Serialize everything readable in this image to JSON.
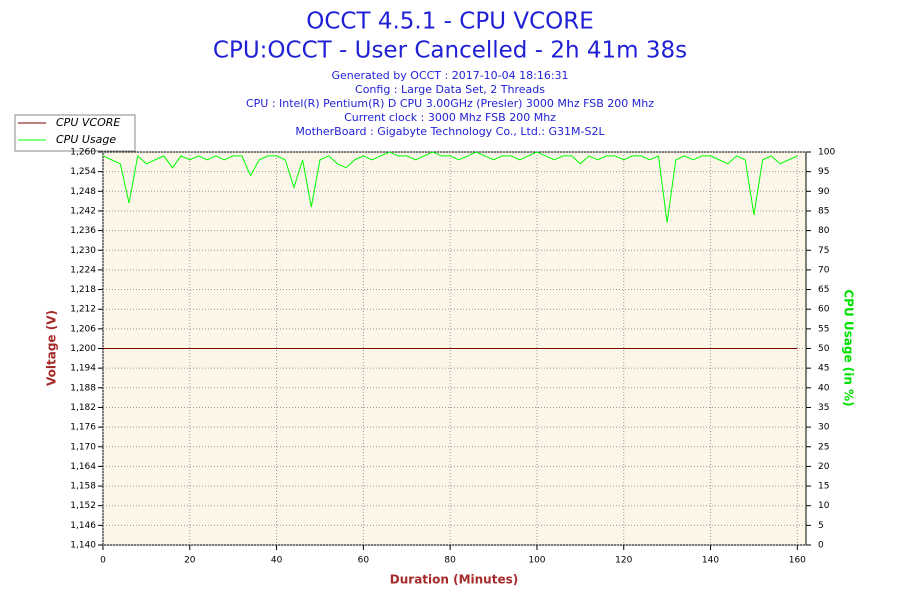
{
  "chart_data": {
    "type": "line",
    "title": "OCCT 4.5.1 - CPU VCORE",
    "subtitle": "CPU:OCCT - User Cancelled - 2h 41m 38s",
    "annotations": [
      "Generated by OCCT : 2017-10-04 18:16:31",
      "Config : Large Data Set, 2 Threads",
      "CPU : Intel(R) Pentium(R) D CPU 3.00GHz (Presler) 3000 Mhz FSB 200 Mhz",
      "Current clock : 3000 Mhz FSB 200 Mhz",
      "MotherBoard : Gigabyte Technology Co., Ltd.: G31M-S2L"
    ],
    "x_label": "Duration (Minutes)",
    "y_label": "Voltage (V)",
    "y2_label": "CPU Usage (in %)",
    "xlim": [
      0,
      162
    ],
    "xticks": [
      0,
      20,
      40,
      60,
      80,
      100,
      120,
      140,
      160
    ],
    "ylim": [
      1.14,
      1.26
    ],
    "yticks": [
      {
        "value": 1.14,
        "label": "1,140"
      },
      {
        "value": 1.146,
        "label": "1,146"
      },
      {
        "value": 1.152,
        "label": "1,152"
      },
      {
        "value": 1.158,
        "label": "1,158"
      },
      {
        "value": 1.164,
        "label": "1,164"
      },
      {
        "value": 1.17,
        "label": "1,170"
      },
      {
        "value": 1.176,
        "label": "1,176"
      },
      {
        "value": 1.182,
        "label": "1,182"
      },
      {
        "value": 1.188,
        "label": "1,188"
      },
      {
        "value": 1.194,
        "label": "1,194"
      },
      {
        "value": 1.2,
        "label": "1,200"
      },
      {
        "value": 1.206,
        "label": "1,206"
      },
      {
        "value": 1.212,
        "label": "1,212"
      },
      {
        "value": 1.218,
        "label": "1,218"
      },
      {
        "value": 1.224,
        "label": "1,224"
      },
      {
        "value": 1.23,
        "label": "1,230"
      },
      {
        "value": 1.236,
        "label": "1,236"
      },
      {
        "value": 1.242,
        "label": "1,242"
      },
      {
        "value": 1.248,
        "label": "1,248"
      },
      {
        "value": 1.254,
        "label": "1,254"
      },
      {
        "value": 1.26,
        "label": "1,260"
      }
    ],
    "y2lim": [
      0,
      100
    ],
    "y2ticks": [
      0,
      5,
      10,
      15,
      20,
      25,
      30,
      35,
      40,
      45,
      50,
      55,
      60,
      65,
      70,
      75,
      80,
      85,
      90,
      95,
      100
    ],
    "grid": true,
    "legend": "top-left",
    "x": [
      0,
      2,
      4,
      6,
      8,
      10,
      12,
      14,
      16,
      18,
      20,
      22,
      24,
      26,
      28,
      30,
      32,
      34,
      36,
      38,
      40,
      42,
      44,
      46,
      48,
      50,
      52,
      54,
      56,
      58,
      60,
      62,
      64,
      66,
      68,
      70,
      72,
      74,
      76,
      78,
      80,
      82,
      84,
      86,
      88,
      90,
      92,
      94,
      96,
      98,
      100,
      102,
      104,
      106,
      108,
      110,
      112,
      114,
      116,
      118,
      120,
      122,
      124,
      126,
      128,
      130,
      132,
      134,
      136,
      138,
      140,
      142,
      144,
      146,
      148,
      150,
      152,
      154,
      156,
      158,
      160
    ],
    "series": [
      {
        "name": "CPU VCORE",
        "color": "#800000",
        "values": [
          1.2,
          1.2,
          1.2,
          1.2,
          1.2,
          1.2,
          1.2,
          1.2,
          1.2,
          1.2,
          1.2,
          1.2,
          1.2,
          1.2,
          1.2,
          1.2,
          1.2,
          1.2,
          1.2,
          1.2,
          1.2,
          1.2,
          1.2,
          1.2,
          1.2,
          1.2,
          1.2,
          1.2,
          1.2,
          1.2,
          1.2,
          1.2,
          1.2,
          1.2,
          1.2,
          1.2,
          1.2,
          1.2,
          1.2,
          1.2,
          1.2,
          1.2,
          1.2,
          1.2,
          1.2,
          1.2,
          1.2,
          1.2,
          1.2,
          1.2,
          1.2,
          1.2,
          1.2,
          1.2,
          1.2,
          1.2,
          1.2,
          1.2,
          1.2,
          1.2,
          1.2,
          1.2,
          1.2,
          1.2,
          1.2,
          1.2,
          1.2,
          1.2,
          1.2,
          1.2,
          1.2,
          1.2,
          1.2,
          1.2,
          1.2,
          1.2,
          1.2,
          1.2,
          1.2,
          1.2,
          1.2
        ]
      },
      {
        "name": "CPU Usage",
        "color": "#00ff00",
        "axis": "y2",
        "values": [
          99,
          98,
          97,
          87,
          99,
          97,
          98,
          99,
          96,
          99,
          98,
          99,
          98,
          99,
          98,
          99,
          99,
          94,
          98,
          99,
          99,
          98,
          91,
          98,
          86,
          98,
          99,
          97,
          96,
          98,
          99,
          98,
          99,
          100,
          99,
          99,
          98,
          99,
          100,
          99,
          99,
          98,
          99,
          100,
          99,
          98,
          99,
          99,
          98,
          99,
          100,
          99,
          98,
          99,
          99,
          97,
          99,
          98,
          99,
          99,
          98,
          99,
          99,
          98,
          99,
          82,
          98,
          99,
          98,
          99,
          99,
          98,
          97,
          99,
          98,
          84,
          98,
          99,
          97,
          98,
          99
        ]
      }
    ]
  }
}
